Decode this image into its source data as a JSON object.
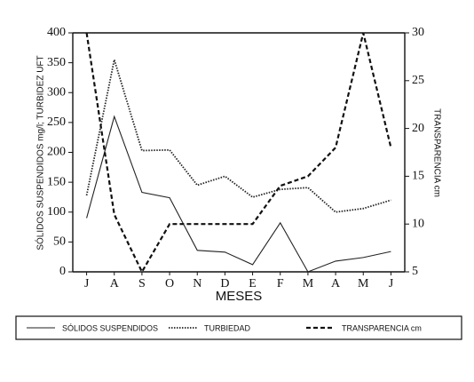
{
  "chart_data": {
    "type": "line",
    "categories": [
      "J",
      "A",
      "S",
      "O",
      "N",
      "D",
      "E",
      "F",
      "M",
      "A",
      "M",
      "J"
    ],
    "x_label": "MESES",
    "y_label": "SÓLIDOS SUSPENDIDOS mg/l; TURBIDEZ UFT",
    "y2_label": "TRANSPARENCIA cm",
    "ylim": [
      0,
      400
    ],
    "yticks": [
      0,
      50,
      100,
      150,
      200,
      250,
      300,
      350,
      400
    ],
    "y2lim": [
      5,
      30
    ],
    "y2ticks": [
      5,
      10,
      15,
      20,
      25,
      30
    ],
    "series": [
      {
        "name": "SÓLIDOS SUSPENDIDOS",
        "color": "#222",
        "style": "solid",
        "values": [
          90,
          260,
          133,
          124,
          36,
          33,
          12,
          82,
          0,
          18,
          24,
          34
        ]
      },
      {
        "name": "TURBIEDAD",
        "color": "#222",
        "style": "dotted",
        "values": [
          128,
          355,
          203,
          204,
          145,
          160,
          125,
          138,
          141,
          100,
          106,
          120
        ]
      },
      {
        "name": "TRANSPARENCIA cm",
        "color": "#111",
        "style": "dashed",
        "axis": "y2",
        "values": [
          30,
          11,
          5,
          10,
          10,
          10,
          10,
          14,
          15,
          18,
          30,
          18
        ]
      }
    ]
  }
}
